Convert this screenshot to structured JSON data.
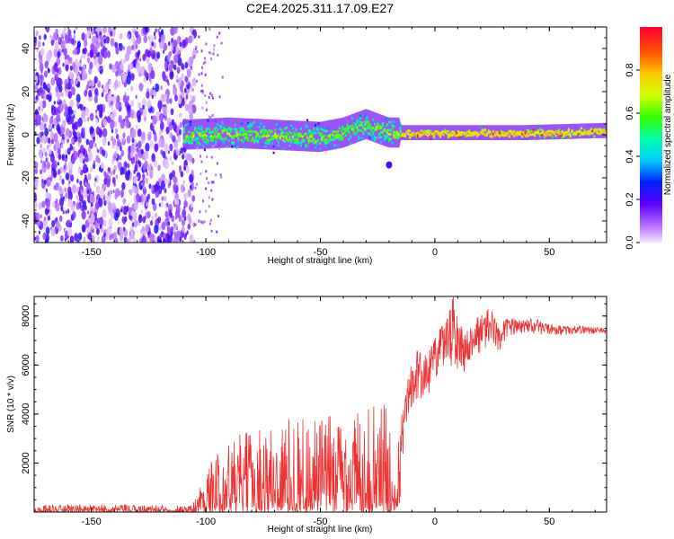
{
  "title": "C2E4.2025.311.17.09.E27",
  "chart_data": [
    {
      "type": "heatmap",
      "name": "spectrogram",
      "xlabel": "Height of straight line (km)",
      "ylabel": "Frequency (Hz)",
      "xlim": [
        -175,
        75
      ],
      "ylim": [
        -50,
        50
      ],
      "x_ticks": [
        -150,
        -100,
        -50,
        0,
        50
      ],
      "y_ticks": [
        -40,
        -20,
        0,
        20,
        40
      ],
      "x_tick_labels": [
        "-150",
        "-100",
        "-50",
        "0",
        "50"
      ],
      "y_tick_labels": [
        "-40",
        "-20",
        "0",
        "20",
        "40"
      ],
      "noise_region_x": [
        -175,
        -105
      ],
      "signal_band_center": [
        [
          -110,
          0
        ],
        [
          -90,
          1
        ],
        [
          -70,
          0
        ],
        [
          -50,
          -1
        ],
        [
          -40,
          1
        ],
        [
          -30,
          5
        ],
        [
          -20,
          1
        ],
        [
          0,
          1
        ],
        [
          40,
          1
        ],
        [
          75,
          2
        ]
      ],
      "signal_start_x": -110,
      "isolated_blob": {
        "x": -20,
        "y": -14
      },
      "colorbar": {
        "label": "Normalized spectral amplitude",
        "range": [
          0,
          1
        ],
        "ticks": [
          0.0,
          0.2,
          0.4,
          0.6,
          0.8
        ],
        "tick_labels": [
          "0.0",
          "0.2",
          "0.4",
          "0.6",
          "0.8"
        ]
      }
    },
    {
      "type": "line",
      "name": "snr",
      "xlabel": "Height of straight line (km)",
      "ylabel": "SNR (10 * v/v)",
      "xlim": [
        -175,
        75
      ],
      "ylim": [
        0,
        8800
      ],
      "x_ticks": [
        -150,
        -100,
        -50,
        0,
        50
      ],
      "y_ticks": [
        2000,
        4000,
        6000,
        8000
      ],
      "x_tick_labels": [
        "-150",
        "-100",
        "-50",
        "0",
        "50"
      ],
      "y_tick_labels": [
        "2000",
        "4000",
        "6000",
        "8000"
      ],
      "color": "#ee3333",
      "envelope": {
        "x": [
          -175,
          -106,
          -104,
          -100,
          -90,
          -80,
          -70,
          -60,
          -50,
          -40,
          -30,
          -22,
          -18,
          -15,
          -12,
          -8,
          -4,
          0,
          4,
          8,
          12,
          16,
          20,
          24,
          28,
          32,
          36,
          40,
          44,
          48,
          55,
          65,
          75
        ],
        "low": [
          0,
          0,
          0,
          0,
          0,
          0,
          0,
          0,
          0,
          0,
          0,
          0,
          0,
          400,
          2800,
          3200,
          3500,
          4200,
          4400,
          3800,
          4600,
          5600,
          5200,
          6200,
          6000,
          6700,
          6600,
          6900,
          6900,
          7000,
          7000,
          7100,
          7100
        ],
        "high": [
          300,
          300,
          800,
          1800,
          3000,
          3400,
          3700,
          4000,
          3900,
          4300,
          4200,
          4700,
          2500,
          3600,
          5600,
          6600,
          6400,
          7200,
          7700,
          8800,
          7400,
          7600,
          8100,
          8400,
          7600,
          8000,
          7800,
          7900,
          7900,
          7700,
          7600,
          7600,
          7500
        ]
      }
    }
  ]
}
